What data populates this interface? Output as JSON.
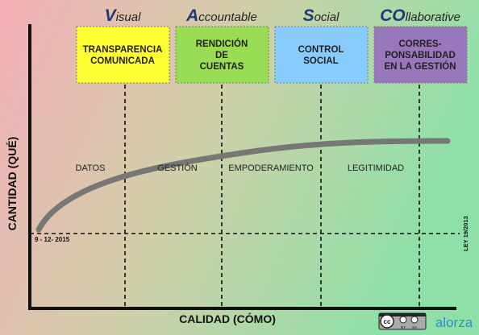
{
  "headers": [
    {
      "initial": "V",
      "rest": "isual"
    },
    {
      "initial": "A",
      "rest": "ccountable"
    },
    {
      "initial": "S",
      "rest": "ocial"
    },
    {
      "initial": "CO",
      "rest": "llaborative"
    }
  ],
  "boxes": [
    {
      "lines": [
        "TRANSPARENCIA",
        "COMUNICADA"
      ]
    },
    {
      "lines": [
        "RENDICIÓN",
        "DE",
        "CUENTAS"
      ]
    },
    {
      "lines": [
        "CONTROL",
        "SOCIAL"
      ]
    },
    {
      "lines": [
        "CORRES-",
        "PONSABILIDAD",
        "EN LA GESTIÓN"
      ]
    }
  ],
  "phases": [
    "DATOS",
    "GESTIÓN",
    "EMPODERAMIENTO",
    "LEGITIMIDAD"
  ],
  "y_axis_label": "CANTIDAD (QUÉ)",
  "x_axis_label": "CALIDAD (CÓMO)",
  "start_date": "9 - 12- 2015",
  "law": "LEY 19/2013",
  "license": {
    "cc": "cc",
    "by": "BY",
    "sa": "SA"
  },
  "logo": "alorza"
}
